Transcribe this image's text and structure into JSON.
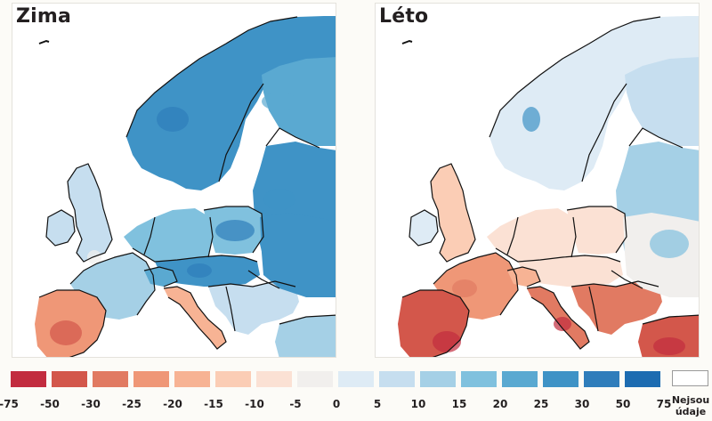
{
  "panels": [
    {
      "id": "winter",
      "title": "Zima",
      "dominant": "cooling-blue",
      "south_tint": "warm-red"
    },
    {
      "id": "summer",
      "title": "Léto",
      "dominant": "warming-red",
      "north_tint": "cool-blue"
    }
  ],
  "legend": {
    "swatches": [
      {
        "color": "#c22c3f"
      },
      {
        "color": "#d3574b"
      },
      {
        "color": "#e17a62"
      },
      {
        "color": "#ef9777"
      },
      {
        "color": "#f7b394"
      },
      {
        "color": "#fbcdb5"
      },
      {
        "color": "#fbe1d4"
      },
      {
        "color": "#f1efed"
      },
      {
        "color": "#deebf5"
      },
      {
        "color": "#c6deef"
      },
      {
        "color": "#a5d0e6"
      },
      {
        "color": "#80c1de"
      },
      {
        "color": "#5aa9d1"
      },
      {
        "color": "#3f93c6"
      },
      {
        "color": "#2f7dbb"
      },
      {
        "color": "#1d6cb1"
      }
    ],
    "ticks": [
      "-75",
      "-50",
      "-30",
      "-25",
      "-20",
      "-15",
      "-10",
      "-5",
      "0",
      "5",
      "10",
      "15",
      "20",
      "25",
      "30",
      "50",
      "75"
    ],
    "no_data": {
      "line1": "Nejsou",
      "line2": "údaje",
      "color": "#ffffff"
    }
  }
}
